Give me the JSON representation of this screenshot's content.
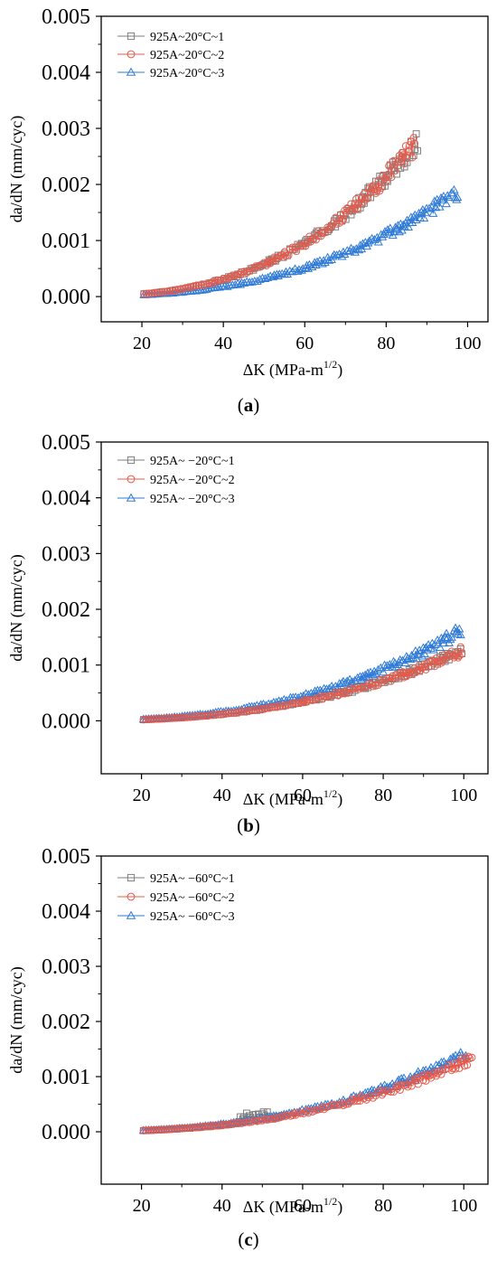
{
  "colors": {
    "series1": "#7f7f7f",
    "series2": "#e8594a",
    "series3": "#2e7ad6",
    "axis": "#000000"
  },
  "chart_data": [
    {
      "type": "scatter",
      "panel_label": "a",
      "xlabel": "ΔK (MPa-m",
      "xlabel_sup": "1/2",
      "xlabel_close": ")",
      "ylabel": "da/dN (mm/cyc)",
      "xlim": [
        10,
        105
      ],
      "ylim": [
        -0.00045,
        0.005
      ],
      "xticks": [
        "20",
        "40",
        "60",
        "80",
        "100"
      ],
      "xtick_values": [
        20,
        40,
        60,
        80,
        100
      ],
      "yticks": [
        "0.000",
        "0.001",
        "0.002",
        "0.003",
        "0.004",
        "0.005"
      ],
      "ytick_values": [
        0,
        0.001,
        0.002,
        0.003,
        0.004,
        0.005
      ],
      "legend_position": "top-left",
      "series": [
        {
          "name": "925A~20°C~1",
          "marker": "square",
          "x_range": [
            20.5,
            88
          ],
          "coef": 1e-08,
          "exp": 2.8,
          "extra_k": 1.6e-08,
          "extra_p": 7.8,
          "peak_x": 88
        },
        {
          "name": "925A~20°C~2",
          "marker": "circle",
          "x_range": [
            20.5,
            87
          ],
          "coef": 1e-08,
          "exp": 2.8,
          "extra_k": 2.7e-08,
          "extra_p": 7.8,
          "peak_x": 87
        },
        {
          "name": "925A~20°C~3",
          "marker": "triangle",
          "x_range": [
            20.5,
            97.5
          ],
          "coef": 1e-08,
          "exp": 2.65,
          "extra_k": 5e-10,
          "extra_p": 8.5,
          "peak_x": 97.5
        }
      ]
    },
    {
      "type": "scatter",
      "panel_label": "b",
      "xlabel": "ΔK (MPa-m",
      "xlabel_sup": "1/2",
      "xlabel_close": ")",
      "ylabel": "da/dN (mm/cyc)",
      "xlim": [
        10,
        106
      ],
      "ylim": [
        -0.00095,
        0.005
      ],
      "xticks": [
        "20",
        "40",
        "60",
        "80",
        "100"
      ],
      "xtick_values": [
        20,
        40,
        60,
        80,
        100
      ],
      "yticks": [
        "0.000",
        "0.001",
        "0.002",
        "0.003",
        "0.004",
        "0.005"
      ],
      "ytick_values": [
        0,
        0.001,
        0.002,
        0.003,
        0.004,
        0.005
      ],
      "legend_position": "top-left",
      "series": [
        {
          "name": "925A~ −20°C~1",
          "marker": "square",
          "x_range": [
            20.5,
            99.5
          ],
          "coef": 1e-08,
          "exp": 2.55,
          "extra_k": 3e-06,
          "extra_p": 4.2,
          "peak_x": 99.5
        },
        {
          "name": "925A~ −20°C~2",
          "marker": "circle",
          "x_range": [
            20.5,
            99.5
          ],
          "coef": 1e-08,
          "exp": 2.55,
          "extra_k": 3e-06,
          "extra_p": 4.2,
          "peak_x": 99.5
        },
        {
          "name": "925A~ −20°C~3",
          "marker": "triangle",
          "x_range": [
            20.5,
            99.5
          ],
          "coef": 1.3e-08,
          "exp": 2.55,
          "extra_k": 3e-06,
          "extra_p": 4.2,
          "peak_x": 99.5
        }
      ]
    },
    {
      "type": "scatter",
      "panel_label": "c",
      "xlabel": "ΔK (MPa-m",
      "xlabel_sup": "1/2",
      "xlabel_close": ")",
      "ylabel": "da/dN (mm/cyc)",
      "xlim": [
        10,
        106
      ],
      "ylim": [
        -0.00095,
        0.005
      ],
      "xticks": [
        "20",
        "40",
        "60",
        "80",
        "100"
      ],
      "xtick_values": [
        20,
        40,
        60,
        80,
        100
      ],
      "yticks": [
        "0.000",
        "0.001",
        "0.002",
        "0.003",
        "0.004",
        "0.005"
      ],
      "ytick_values": [
        0,
        0.001,
        0.002,
        0.003,
        0.004,
        0.005
      ],
      "legend_position": "top-left",
      "series": [
        {
          "name": "925A~ −60°C~1",
          "marker": "square",
          "x_range": [
            20.5,
            55
          ],
          "coef": 1e-08,
          "exp": 2.55,
          "extra_k": 0,
          "extra_p": 1,
          "peak_x": 55
        },
        {
          "name": "925A~ −60°C~2",
          "marker": "circle",
          "x_range": [
            20.5,
            102
          ],
          "coef": 1e-08,
          "exp": 2.55,
          "extra_k": 3e-08,
          "extra_p": 6.0,
          "peak_x": 102
        },
        {
          "name": "925A~ −60°C~3",
          "marker": "triangle",
          "x_range": [
            20.5,
            101
          ],
          "coef": 1.1e-08,
          "exp": 2.55,
          "extra_k": 1.6e-11,
          "extra_p": 11.0,
          "peak_x": 101
        }
      ]
    }
  ]
}
